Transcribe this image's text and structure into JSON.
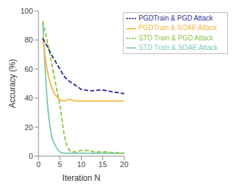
{
  "chart_data": {
    "type": "line",
    "x_label": "Iteration N",
    "y_label": "Accuracy (%)",
    "x": [
      1,
      2,
      3,
      4,
      5,
      6,
      7,
      8,
      9,
      10,
      11,
      12,
      13,
      14,
      15,
      16,
      17,
      18,
      19,
      20
    ],
    "xlim": [
      0,
      20
    ],
    "xticks": [
      0,
      5,
      10,
      15,
      20
    ],
    "ylim": [
      0,
      100
    ],
    "yticks": [
      0,
      20,
      40,
      60,
      80,
      100
    ],
    "grid": false,
    "legend": "upper right",
    "series": [
      {
        "name": "STD Train & SOAE Attack",
        "color": "#7ecbb5",
        "line_style": "solid",
        "values": [
          92,
          40,
          15,
          7,
          3,
          2,
          2,
          2,
          2,
          2,
          2,
          2,
          2,
          2,
          2,
          2,
          2,
          2,
          2,
          2
        ]
      },
      {
        "name": "PGDTrain & SOAE Attack",
        "color": "#f5b942",
        "line_style": "solid",
        "values": [
          82,
          60,
          48,
          42,
          39,
          38,
          39,
          38.5,
          38,
          38,
          38,
          38,
          38,
          38,
          38,
          38,
          38,
          38,
          38,
          38
        ]
      },
      {
        "name": "STD Train & PGD Attack",
        "color": "#8dc63f",
        "line_style": "dashed",
        "values": [
          93,
          80,
          65,
          50,
          35,
          15,
          5,
          3,
          3,
          4,
          4,
          3.5,
          3,
          3,
          3,
          3,
          2.5,
          2.5,
          2,
          2
        ]
      },
      {
        "name": "PGDTrain & PGD Attack",
        "color": "#2e3192",
        "line_style": "dashed",
        "values": [
          81,
          76,
          70,
          65,
          60,
          55,
          52,
          50,
          48,
          46,
          45.5,
          45,
          45,
          45.5,
          45.5,
          45,
          44.5,
          44,
          43.5,
          43
        ]
      }
    ]
  }
}
